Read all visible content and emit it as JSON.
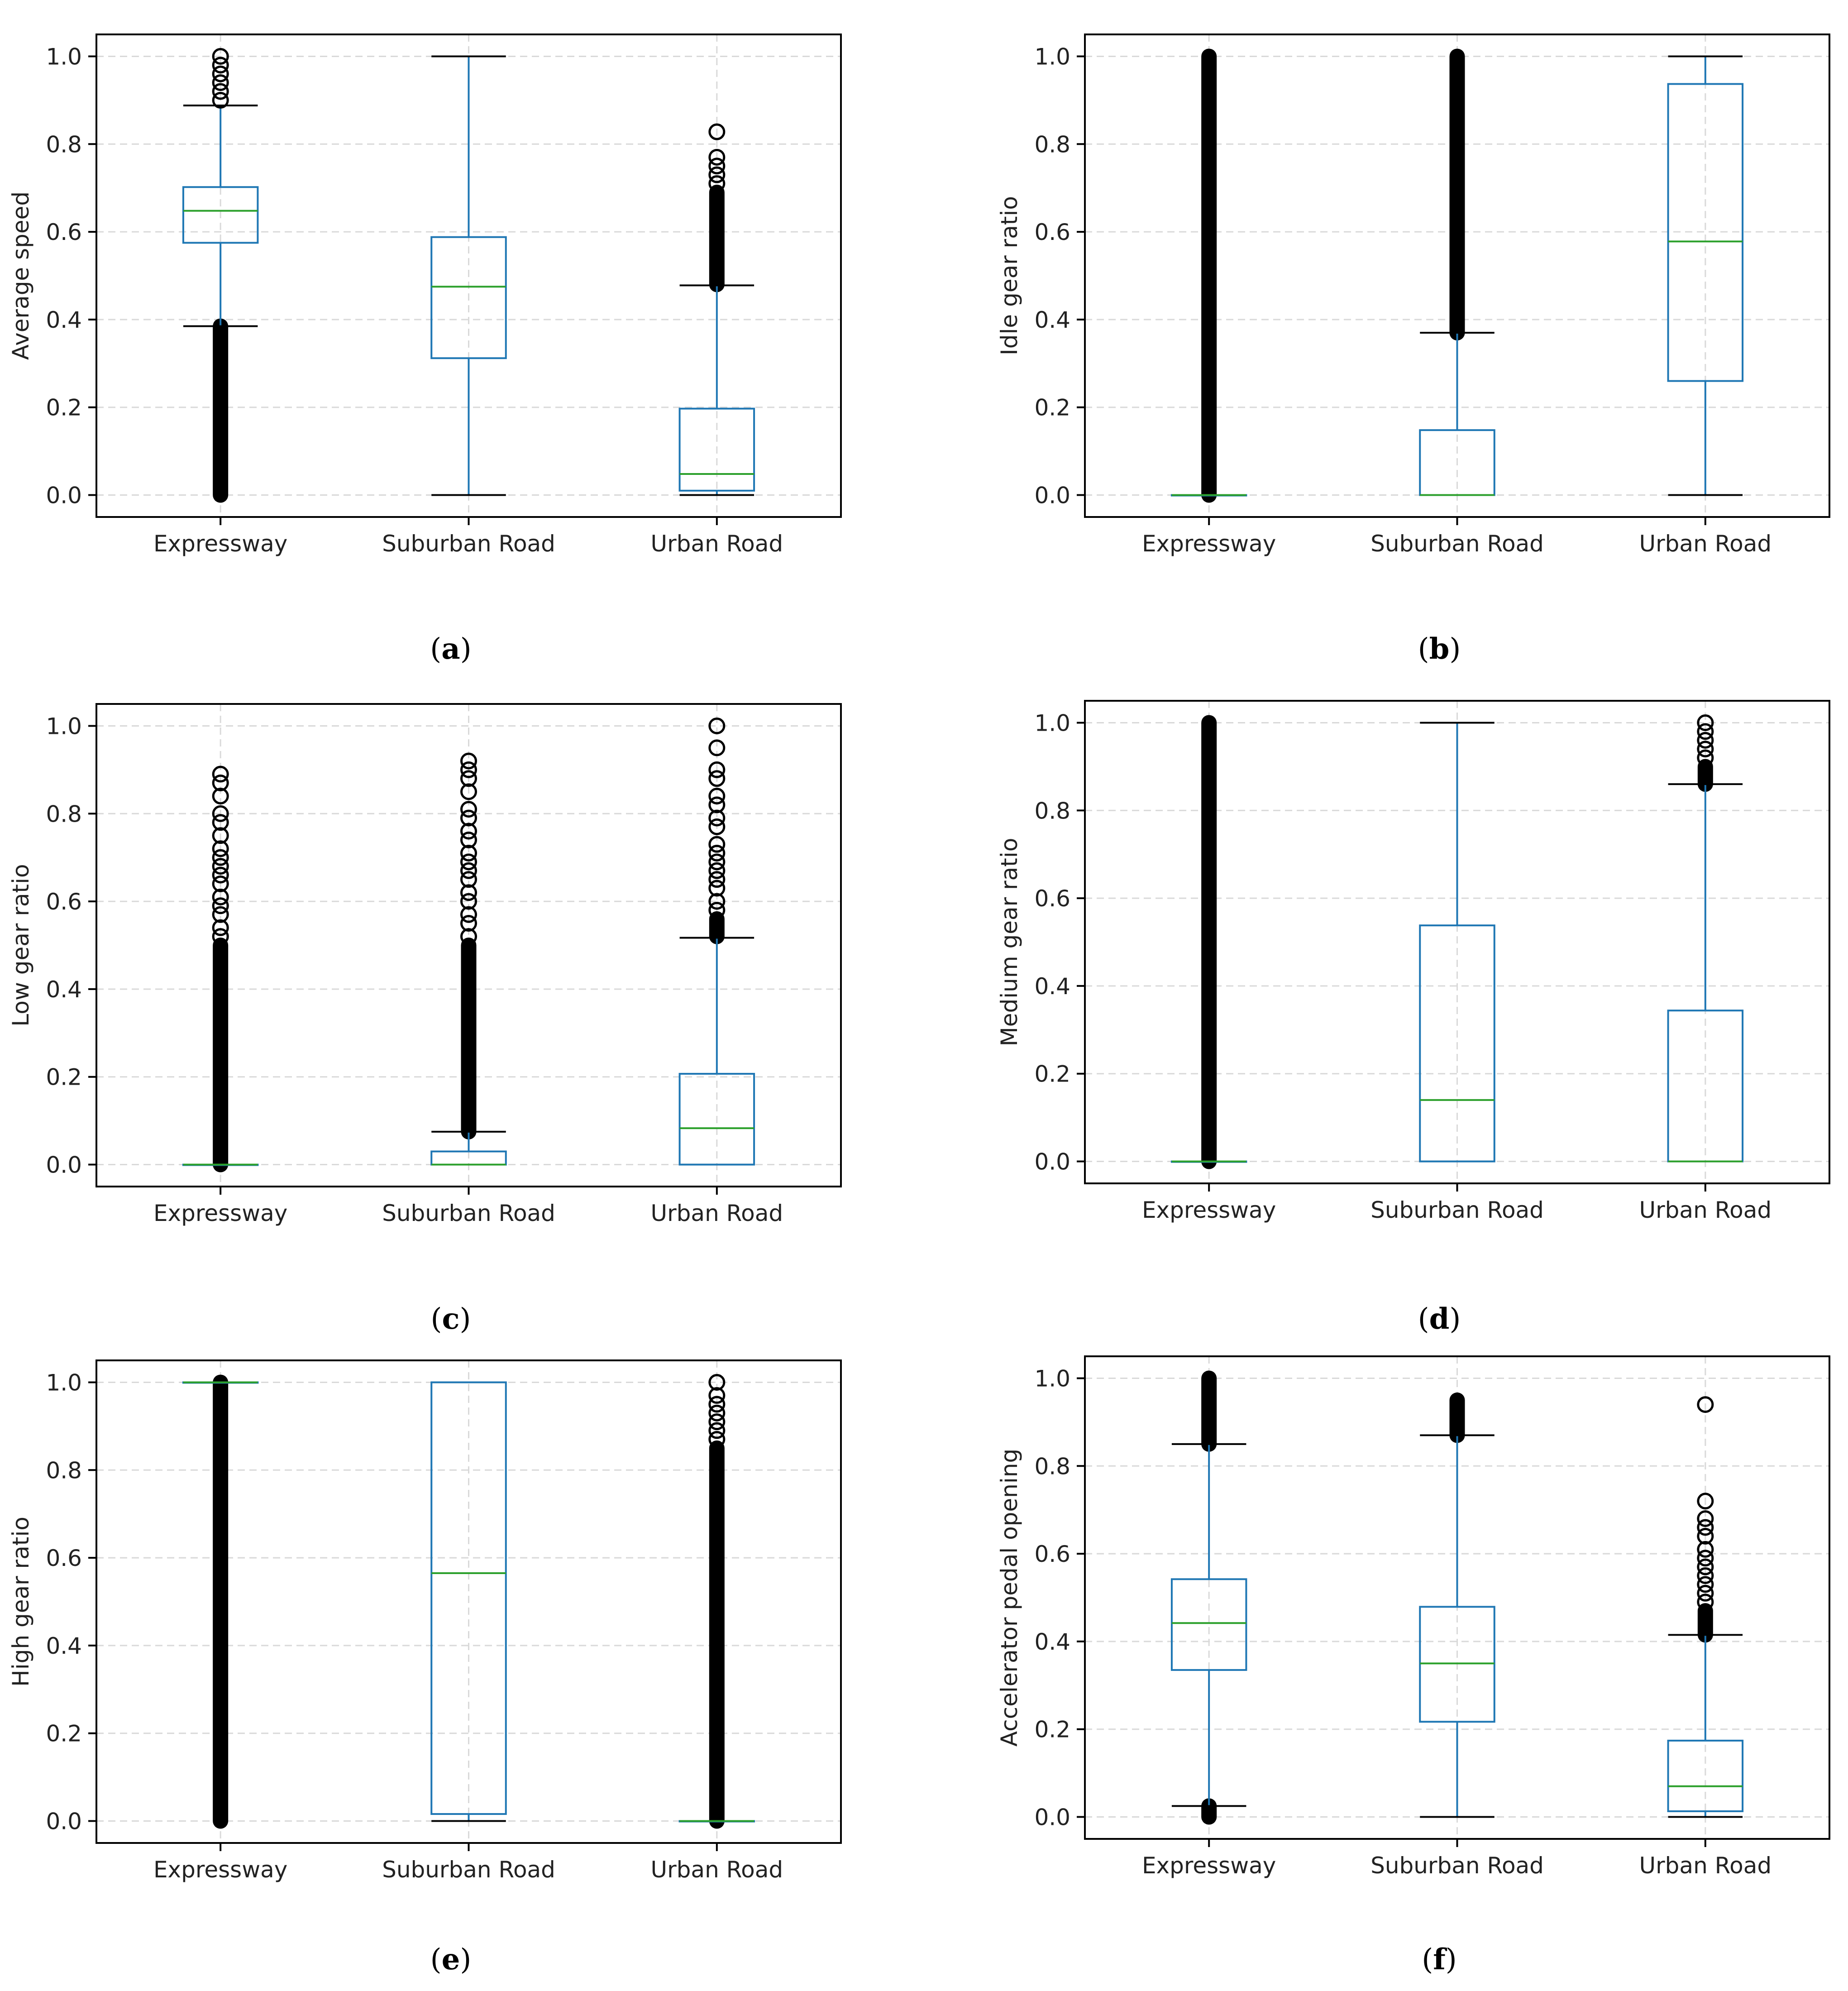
{
  "figure": {
    "panels_caption_style": "(letter)",
    "colors": {
      "box": "#1f77b4",
      "median": "#2ca02c",
      "whisker": "#1f77b4",
      "flier": "#000000",
      "grid": "#d9d9d9",
      "axes": "#000000"
    }
  },
  "chart_data": [
    {
      "type": "boxplot",
      "label": "a",
      "ylabel": "Average speed",
      "categories": [
        "Expressway",
        "Suburban Road",
        "Urban Road"
      ],
      "ylim": [
        -0.05,
        1.05
      ],
      "yticks": [
        "0.0",
        "0.2",
        "0.4",
        "0.6",
        "0.8",
        "1.0"
      ],
      "grid": true,
      "boxes": [
        {
          "q1": 0.575,
          "median": 0.648,
          "q3": 0.702,
          "whislo": 0.385,
          "whishi": 0.888,
          "fliers_dense": [
            [
              0.0,
              0.385
            ]
          ],
          "fliers": [
            0.9,
            0.92,
            0.94,
            0.96,
            0.98,
            1.0
          ]
        },
        {
          "q1": 0.312,
          "median": 0.475,
          "q3": 0.588,
          "whislo": 0.0,
          "whishi": 1.0,
          "fliers_dense": [],
          "fliers": []
        },
        {
          "q1": 0.01,
          "median": 0.048,
          "q3": 0.197,
          "whislo": 0.0,
          "whishi": 0.478,
          "fliers_dense": [
            [
              0.48,
              0.69
            ]
          ],
          "fliers": [
            0.71,
            0.73,
            0.75,
            0.77,
            0.828
          ]
        }
      ]
    },
    {
      "type": "boxplot",
      "label": "b",
      "ylabel": "Idle gear ratio",
      "categories": [
        "Expressway",
        "Suburban Road",
        "Urban Road"
      ],
      "ylim": [
        -0.05,
        1.05
      ],
      "yticks": [
        "0.0",
        "0.2",
        "0.4",
        "0.6",
        "0.8",
        "1.0"
      ],
      "grid": true,
      "boxes": [
        {
          "q1": 0.0,
          "median": 0.0,
          "q3": 0.0,
          "whislo": 0.0,
          "whishi": 0.0,
          "fliers_dense": [
            [
              0.0,
              1.0
            ]
          ],
          "fliers": []
        },
        {
          "q1": 0.0,
          "median": 0.0,
          "q3": 0.148,
          "whislo": 0.0,
          "whishi": 0.37,
          "fliers_dense": [
            [
              0.37,
              1.0
            ]
          ],
          "fliers": []
        },
        {
          "q1": 0.26,
          "median": 0.578,
          "q3": 0.937,
          "whislo": 0.0,
          "whishi": 1.0,
          "fliers_dense": [],
          "fliers": []
        }
      ]
    },
    {
      "type": "boxplot",
      "label": "c",
      "ylabel": "Low gear ratio",
      "categories": [
        "Expressway",
        "Suburban Road",
        "Urban Road"
      ],
      "ylim": [
        -0.05,
        1.05
      ],
      "yticks": [
        "0.0",
        "0.2",
        "0.4",
        "0.6",
        "0.8",
        "1.0"
      ],
      "grid": true,
      "boxes": [
        {
          "q1": 0.0,
          "median": 0.0,
          "q3": 0.0,
          "whislo": 0.0,
          "whishi": 0.0,
          "fliers_dense": [
            [
              0.0,
              0.5
            ]
          ],
          "fliers": [
            0.52,
            0.54,
            0.57,
            0.59,
            0.61,
            0.64,
            0.66,
            0.68,
            0.7,
            0.72,
            0.75,
            0.78,
            0.8,
            0.84,
            0.87,
            0.89
          ]
        },
        {
          "q1": 0.0,
          "median": 0.0,
          "q3": 0.03,
          "whislo": 0.0,
          "whishi": 0.075,
          "fliers_dense": [
            [
              0.075,
              0.5
            ]
          ],
          "fliers": [
            0.52,
            0.55,
            0.57,
            0.6,
            0.62,
            0.65,
            0.67,
            0.69,
            0.71,
            0.74,
            0.76,
            0.79,
            0.81,
            0.85,
            0.88,
            0.9,
            0.92
          ]
        },
        {
          "q1": 0.0,
          "median": 0.083,
          "q3": 0.207,
          "whislo": 0.0,
          "whishi": 0.517,
          "fliers_dense": [
            [
              0.52,
              0.56
            ]
          ],
          "fliers": [
            0.58,
            0.6,
            0.63,
            0.65,
            0.67,
            0.69,
            0.71,
            0.73,
            0.77,
            0.79,
            0.82,
            0.84,
            0.88,
            0.9,
            0.95,
            1.0
          ]
        }
      ]
    },
    {
      "type": "boxplot",
      "label": "d",
      "ylabel": "Medium gear ratio",
      "categories": [
        "Expressway",
        "Suburban Road",
        "Urban Road"
      ],
      "ylim": [
        -0.05,
        1.05
      ],
      "yticks": [
        "0.0",
        "0.2",
        "0.4",
        "0.6",
        "0.8",
        "1.0"
      ],
      "grid": true,
      "boxes": [
        {
          "q1": 0.0,
          "median": 0.0,
          "q3": 0.0,
          "whislo": 0.0,
          "whishi": 0.0,
          "fliers_dense": [
            [
              0.0,
              1.0
            ]
          ],
          "fliers": []
        },
        {
          "q1": 0.0,
          "median": 0.14,
          "q3": 0.538,
          "whislo": 0.0,
          "whishi": 1.0,
          "fliers_dense": [],
          "fliers": []
        },
        {
          "q1": 0.0,
          "median": 0.0,
          "q3": 0.344,
          "whislo": 0.0,
          "whishi": 0.86,
          "fliers_dense": [
            [
              0.86,
              0.9
            ]
          ],
          "fliers": [
            0.92,
            0.94,
            0.96,
            0.98,
            1.0
          ]
        }
      ]
    },
    {
      "type": "boxplot",
      "label": "e",
      "ylabel": "High gear ratio",
      "categories": [
        "Expressway",
        "Suburban Road",
        "Urban Road"
      ],
      "ylim": [
        -0.05,
        1.05
      ],
      "yticks": [
        "0.0",
        "0.2",
        "0.4",
        "0.6",
        "0.8",
        "1.0"
      ],
      "grid": true,
      "boxes": [
        {
          "q1": 1.0,
          "median": 1.0,
          "q3": 1.0,
          "whislo": 1.0,
          "whishi": 1.0,
          "fliers_dense": [
            [
              0.0,
              1.0
            ]
          ],
          "fliers": []
        },
        {
          "q1": 0.016,
          "median": 0.565,
          "q3": 1.0,
          "whislo": 0.0,
          "whishi": 1.0,
          "fliers_dense": [],
          "fliers": []
        },
        {
          "q1": 0.0,
          "median": 0.0,
          "q3": 0.0,
          "whislo": 0.0,
          "whishi": 0.0,
          "fliers_dense": [
            [
              0.0,
              0.85
            ]
          ],
          "fliers": [
            0.87,
            0.89,
            0.91,
            0.93,
            0.95,
            0.97,
            1.0
          ]
        }
      ]
    },
    {
      "type": "boxplot",
      "label": "f",
      "ylabel": "Accelerator pedal opening",
      "categories": [
        "Expressway",
        "Suburban Road",
        "Urban Road"
      ],
      "ylim": [
        -0.05,
        1.05
      ],
      "yticks": [
        "0.0",
        "0.2",
        "0.4",
        "0.6",
        "0.8",
        "1.0"
      ],
      "grid": true,
      "boxes": [
        {
          "q1": 0.335,
          "median": 0.442,
          "q3": 0.542,
          "whislo": 0.025,
          "whishi": 0.85,
          "fliers_dense": [
            [
              0.0,
              0.025
            ],
            [
              0.85,
              1.0
            ]
          ],
          "fliers": []
        },
        {
          "q1": 0.217,
          "median": 0.35,
          "q3": 0.479,
          "whislo": 0.0,
          "whishi": 0.87,
          "fliers_dense": [
            [
              0.87,
              0.95
            ]
          ],
          "fliers": []
        },
        {
          "q1": 0.013,
          "median": 0.07,
          "q3": 0.174,
          "whislo": 0.0,
          "whishi": 0.415,
          "fliers_dense": [
            [
              0.415,
              0.47
            ]
          ],
          "fliers": [
            0.49,
            0.51,
            0.53,
            0.55,
            0.57,
            0.59,
            0.61,
            0.64,
            0.66,
            0.68,
            0.72,
            0.94
          ]
        }
      ]
    }
  ]
}
